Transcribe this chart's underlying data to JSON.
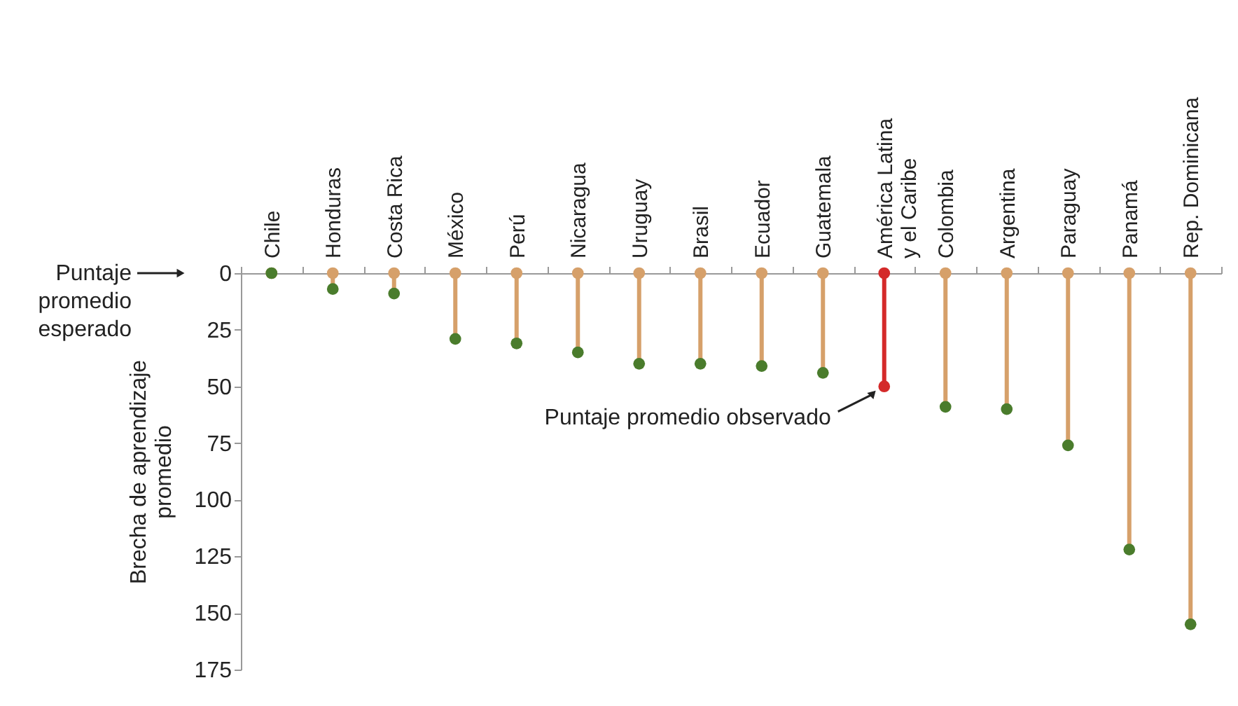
{
  "chart_data": {
    "type": "lollipop",
    "categories": [
      "Chile",
      "Honduras",
      "Costa Rica",
      "México",
      "Perú",
      "Nicaragua",
      "Uruguay",
      "Brasil",
      "Ecuador",
      "Guatemala",
      "América Latina y el Caribe",
      "Colombia",
      "Argentina",
      "Paraguay",
      "Panamá",
      "Rep. Dominicana"
    ],
    "series": [
      {
        "type": "scatter",
        "values": [
          0,
          0,
          0,
          0,
          0,
          0,
          0,
          0,
          0,
          0,
          0,
          0,
          0,
          0,
          0,
          0
        ],
        "colors": [
          "#d6a06a",
          "#d6a06a",
          "#d6a06a",
          "#d6a06a",
          "#d6a06a",
          "#d6a06a",
          "#d6a06a",
          "#d6a06a",
          "#d6a06a",
          "#d6a06a",
          "#d42a2a",
          "#d6a06a",
          "#d6a06a",
          "#d6a06a",
          "#d6a06a",
          "#d6a06a"
        ]
      },
      {
        "values": [
          0,
          7,
          9,
          29,
          31,
          35,
          40,
          40,
          41,
          44,
          50,
          59,
          60,
          76,
          122,
          155
        ],
        "colors": [
          "#4a7c2c",
          "#4a7c2c",
          "#4a7c2c",
          "#4a7c2c",
          "#4a7c2c",
          "#4a7c2c",
          "#4a7c2c",
          "#4a7c2c",
          "#4a7c2c",
          "#4a7c2c",
          "#d42a2a",
          "#4a7c2c",
          "#4a7c2c",
          "#4a7c2c",
          "#4a7c2c",
          "#4a7c2c"
        ]
      }
    ],
    "ylabel": "Brecha de aprendizaje promedio",
    "ylim": [
      175,
      0
    ],
    "yticks": [
      0,
      25,
      50,
      75,
      100,
      125,
      150,
      175
    ],
    "annotations": [
      "Puntaje promedio esperado",
      {
        "text": "Puntaje promedio observado",
        "x": "América Latina y el Caribe",
        "y": 50
      }
    ]
  }
}
